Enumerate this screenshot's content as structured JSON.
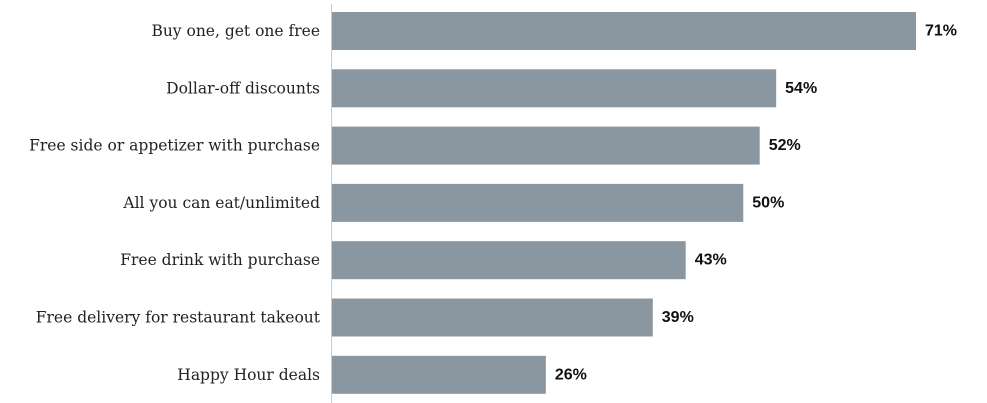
{
  "chart_data": {
    "type": "bar",
    "orientation": "horizontal",
    "categories": [
      "Buy one, get one free",
      "Dollar-off discounts",
      "Free side or appetizer with purchase",
      "All you can eat/unlimited",
      "Free drink with purchase",
      "Free delivery for restaurant takeout",
      "Happy Hour deals"
    ],
    "values": [
      71,
      54,
      52,
      50,
      43,
      39,
      26
    ],
    "value_labels": [
      "71%",
      "54%",
      "52%",
      "50%",
      "43%",
      "39%",
      "26%"
    ],
    "unit": "%",
    "xlim": [
      0,
      100
    ],
    "grid": false,
    "legend": "none",
    "bar_color": "#8a97a1"
  }
}
